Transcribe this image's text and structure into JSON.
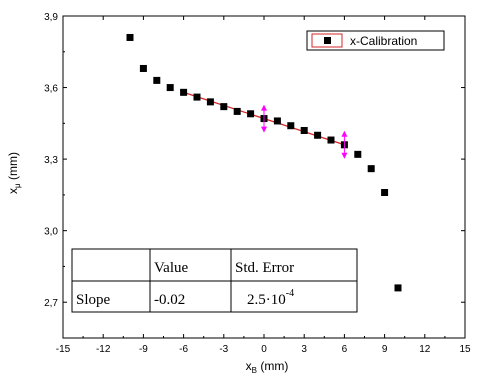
{
  "chart_data": {
    "type": "scatter",
    "xlabel": "x",
    "xlabel_sub": "B",
    "xlabel_unit": " (mm)",
    "ylabel": "x",
    "ylabel_sub": "μ",
    "ylabel_unit": " (mm)",
    "xlim": [
      -15,
      15
    ],
    "ylim": [
      2.55,
      3.9
    ],
    "x_ticks": [
      -15,
      -12,
      -9,
      -6,
      -3,
      0,
      3,
      6,
      9,
      12,
      15
    ],
    "x_tick_labels": [
      "-15",
      "-12",
      "-9",
      "-6",
      "-3",
      "0",
      "3",
      "6",
      "9",
      "12",
      "15"
    ],
    "y_ticks": [
      2.7,
      3.0,
      3.3,
      3.6,
      3.9
    ],
    "y_tick_labels": [
      "2,7",
      "3,0",
      "3,3",
      "3,6",
      "3,9"
    ],
    "legend": {
      "placement": "top-right",
      "entries": [
        "x-Calibration"
      ]
    },
    "series": [
      {
        "name": "x-Calibration",
        "x": [
          -10,
          -9,
          -8,
          -7,
          -6,
          -5,
          -4,
          -3,
          -2,
          -1,
          0,
          1,
          2,
          3,
          4,
          5,
          6,
          7,
          8,
          9,
          10
        ],
        "y": [
          3.81,
          3.68,
          3.63,
          3.6,
          3.58,
          3.56,
          3.54,
          3.52,
          3.5,
          3.49,
          3.47,
          3.46,
          3.44,
          3.42,
          3.4,
          3.38,
          3.36,
          3.32,
          3.26,
          3.16,
          2.76
        ]
      }
    ],
    "fit_line": {
      "x": [
        -6,
        6
      ],
      "y": [
        3.58,
        3.36
      ]
    },
    "fit_range_markers": [
      0,
      6
    ],
    "table": {
      "headers": [
        "",
        "Value",
        "Std. Error"
      ],
      "rows": [
        {
          "label": "Slope",
          "value": "-0.02",
          "err_base": "2.5·10",
          "err_exp": "-4"
        }
      ]
    },
    "colors": {
      "fit": "#d62728",
      "markers": "#ff00ff",
      "points": "#000000"
    }
  }
}
